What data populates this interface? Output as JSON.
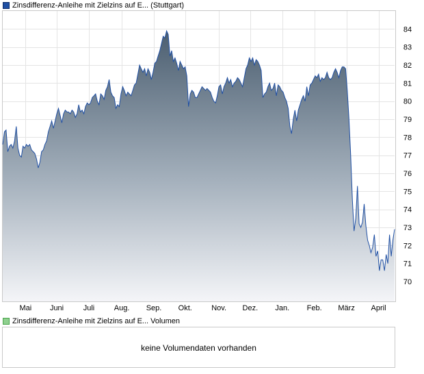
{
  "price_legend": {
    "label": "Zinsdifferenz-Anleihe mit Zielzins auf E... (Stuttgart)",
    "color": "#1f4fa3"
  },
  "volume_legend": {
    "label": "Zinsdifferenz-Anleihe mit Zielzins auf E... Volumen",
    "color": "#49a34b"
  },
  "volume": {
    "message": "keine Volumendaten vorhanden"
  },
  "chart_data": {
    "type": "area",
    "y_ticks": [
      70,
      71,
      72,
      73,
      74,
      75,
      76,
      77,
      78,
      79,
      80,
      81,
      82,
      83,
      84
    ],
    "ylim": [
      68.9,
      85.0
    ],
    "x_ticks": [
      {
        "label": "Mai",
        "pos": 13.5
      },
      {
        "label": "Juni",
        "pos": 32
      },
      {
        "label": "Juli",
        "pos": 51
      },
      {
        "label": "Aug.",
        "pos": 70.5
      },
      {
        "label": "Sep.",
        "pos": 89.5
      },
      {
        "label": "Okt.",
        "pos": 108
      },
      {
        "label": "Nov.",
        "pos": 128
      },
      {
        "label": "Dez.",
        "pos": 146.5
      },
      {
        "label": "Jan.",
        "pos": 165.5
      },
      {
        "label": "Feb.",
        "pos": 184.5
      },
      {
        "label": "März",
        "pos": 203.5
      },
      {
        "label": "April",
        "pos": 222.5
      }
    ],
    "xlim": [
      0,
      232
    ],
    "grid": true,
    "series": [
      {
        "values": [
          [
            0,
            77.6
          ],
          [
            1,
            78.3
          ],
          [
            2,
            78.4
          ],
          [
            3,
            77.2
          ],
          [
            4,
            77.5
          ],
          [
            5,
            77.6
          ],
          [
            6,
            77.4
          ],
          [
            7,
            77.8
          ],
          [
            8,
            78.6
          ],
          [
            9,
            77.4
          ],
          [
            10,
            77.0
          ],
          [
            11,
            76.9
          ],
          [
            12,
            77.5
          ],
          [
            13,
            77.4
          ],
          [
            14,
            77.6
          ],
          [
            15,
            77.5
          ],
          [
            16,
            77.6
          ],
          [
            17,
            77.3
          ],
          [
            18,
            77.2
          ],
          [
            19,
            77.1
          ],
          [
            20,
            76.8
          ],
          [
            21,
            76.3
          ],
          [
            22,
            76.6
          ],
          [
            23,
            77.2
          ],
          [
            24,
            77.3
          ],
          [
            25,
            77.6
          ],
          [
            26,
            77.8
          ],
          [
            27,
            78.3
          ],
          [
            28,
            78.6
          ],
          [
            29,
            78.9
          ],
          [
            30,
            78.5
          ],
          [
            31,
            78.9
          ],
          [
            32,
            79.3
          ],
          [
            33,
            79.6
          ],
          [
            34,
            79.2
          ],
          [
            35,
            78.8
          ],
          [
            36,
            79.3
          ],
          [
            37,
            79.5
          ],
          [
            38,
            79.4
          ],
          [
            39,
            79.4
          ],
          [
            40,
            79.3
          ],
          [
            41,
            79.5
          ],
          [
            42,
            79.4
          ],
          [
            43,
            79.1
          ],
          [
            44,
            79.3
          ],
          [
            45,
            79.8
          ],
          [
            46,
            79.4
          ],
          [
            47,
            79.5
          ],
          [
            48,
            79.3
          ],
          [
            49,
            79.7
          ],
          [
            50,
            79.9
          ],
          [
            51,
            79.8
          ],
          [
            52,
            79.9
          ],
          [
            53,
            80.2
          ],
          [
            54,
            80.3
          ],
          [
            55,
            80.4
          ],
          [
            56,
            80.0
          ],
          [
            57,
            79.8
          ],
          [
            58,
            80.4
          ],
          [
            59,
            80.3
          ],
          [
            60,
            80.1
          ],
          [
            61,
            80.6
          ],
          [
            62,
            80.8
          ],
          [
            63,
            81.2
          ],
          [
            64,
            80.5
          ],
          [
            65,
            80.3
          ],
          [
            66,
            80.2
          ],
          [
            67,
            79.6
          ],
          [
            68,
            79.8
          ],
          [
            69,
            79.7
          ],
          [
            70,
            80.4
          ],
          [
            71,
            80.8
          ],
          [
            72,
            80.6
          ],
          [
            73,
            80.3
          ],
          [
            74,
            80.5
          ],
          [
            75,
            80.4
          ],
          [
            76,
            80.3
          ],
          [
            77,
            80.6
          ],
          [
            78,
            80.9
          ],
          [
            79,
            81.0
          ],
          [
            80,
            81.5
          ],
          [
            81,
            82.0
          ],
          [
            82,
            81.8
          ],
          [
            83,
            81.6
          ],
          [
            84,
            81.8
          ],
          [
            85,
            81.4
          ],
          [
            86,
            81.8
          ],
          [
            87,
            81.6
          ],
          [
            88,
            81.2
          ],
          [
            89,
            81.6
          ],
          [
            90,
            82.1
          ],
          [
            91,
            82.2
          ],
          [
            92,
            82.5
          ],
          [
            93,
            82.8
          ],
          [
            94,
            83.2
          ],
          [
            95,
            83.6
          ],
          [
            96,
            83.5
          ],
          [
            97,
            83.9
          ],
          [
            98,
            83.7
          ],
          [
            99,
            82.5
          ],
          [
            100,
            82.8
          ],
          [
            101,
            82.2
          ],
          [
            102,
            82.4
          ],
          [
            103,
            82.1
          ],
          [
            104,
            81.7
          ],
          [
            105,
            82.2
          ],
          [
            106,
            82.0
          ],
          [
            107,
            81.8
          ],
          [
            108,
            81.9
          ],
          [
            109,
            81.4
          ],
          [
            110,
            79.7
          ],
          [
            111,
            80.4
          ],
          [
            112,
            80.6
          ],
          [
            113,
            80.5
          ],
          [
            114,
            80.2
          ],
          [
            115,
            80.2
          ],
          [
            116,
            80.4
          ],
          [
            117,
            80.6
          ],
          [
            118,
            80.8
          ],
          [
            119,
            80.7
          ],
          [
            120,
            80.6
          ],
          [
            121,
            80.7
          ],
          [
            122,
            80.6
          ],
          [
            123,
            80.5
          ],
          [
            124,
            80.2
          ],
          [
            125,
            80.0
          ],
          [
            126,
            79.9
          ],
          [
            127,
            80.3
          ],
          [
            128,
            80.8
          ],
          [
            129,
            80.9
          ],
          [
            130,
            80.4
          ],
          [
            131,
            80.8
          ],
          [
            132,
            81.0
          ],
          [
            133,
            81.3
          ],
          [
            134,
            81.0
          ],
          [
            135,
            81.2
          ],
          [
            136,
            80.8
          ],
          [
            137,
            81.0
          ],
          [
            138,
            81.1
          ],
          [
            139,
            81.3
          ],
          [
            140,
            81.2
          ],
          [
            141,
            81.0
          ],
          [
            142,
            80.8
          ],
          [
            143,
            81.3
          ],
          [
            144,
            81.8
          ],
          [
            145,
            82.0
          ],
          [
            146,
            82.4
          ],
          [
            147,
            82.2
          ],
          [
            148,
            82.4
          ],
          [
            149,
            82.0
          ],
          [
            150,
            82.3
          ],
          [
            151,
            82.2
          ],
          [
            152,
            82.0
          ],
          [
            153,
            81.7
          ],
          [
            154,
            80.2
          ],
          [
            155,
            80.4
          ],
          [
            156,
            80.5
          ],
          [
            157,
            80.8
          ],
          [
            158,
            81.0
          ],
          [
            159,
            80.6
          ],
          [
            160,
            80.7
          ],
          [
            161,
            81.0
          ],
          [
            162,
            80.3
          ],
          [
            163,
            80.9
          ],
          [
            164,
            80.8
          ],
          [
            165,
            80.6
          ],
          [
            166,
            80.5
          ],
          [
            167,
            80.2
          ],
          [
            168,
            80.0
          ],
          [
            169,
            79.6
          ],
          [
            170,
            78.6
          ],
          [
            171,
            78.2
          ],
          [
            172,
            79.0
          ],
          [
            173,
            79.5
          ],
          [
            174,
            78.9
          ],
          [
            175,
            79.5
          ],
          [
            176,
            79.8
          ],
          [
            177,
            80.1
          ],
          [
            178,
            80.3
          ],
          [
            179,
            80.0
          ],
          [
            180,
            80.8
          ],
          [
            181,
            80.3
          ],
          [
            182,
            80.9
          ],
          [
            183,
            81.0
          ],
          [
            184,
            81.2
          ],
          [
            185,
            81.4
          ],
          [
            186,
            81.3
          ],
          [
            187,
            81.5
          ],
          [
            188,
            81.1
          ],
          [
            189,
            81.3
          ],
          [
            190,
            81.2
          ],
          [
            191,
            81.3
          ],
          [
            192,
            81.6
          ],
          [
            193,
            81.3
          ],
          [
            194,
            81.2
          ],
          [
            195,
            81.3
          ],
          [
            196,
            81.6
          ],
          [
            197,
            81.8
          ],
          [
            198,
            81.6
          ],
          [
            199,
            81.3
          ],
          [
            200,
            81.7
          ],
          [
            201,
            81.9
          ],
          [
            202,
            81.9
          ],
          [
            203,
            81.8
          ],
          [
            204,
            80.6
          ],
          [
            205,
            79.0
          ],
          [
            206,
            77.0
          ],
          [
            207,
            74.5
          ],
          [
            208,
            72.8
          ],
          [
            209,
            73.5
          ],
          [
            210,
            75.3
          ],
          [
            211,
            73.2
          ],
          [
            212,
            73.0
          ],
          [
            213,
            73.3
          ],
          [
            214,
            74.3
          ],
          [
            215,
            73.1
          ],
          [
            216,
            72.3
          ],
          [
            217,
            72.0
          ],
          [
            218,
            71.6
          ],
          [
            219,
            71.9
          ],
          [
            220,
            72.6
          ],
          [
            221,
            71.4
          ],
          [
            222,
            71.7
          ],
          [
            223,
            70.6
          ],
          [
            224,
            71.2
          ],
          [
            225,
            71.2
          ],
          [
            226,
            70.6
          ],
          [
            227,
            71.5
          ],
          [
            228,
            71.0
          ],
          [
            229,
            72.6
          ],
          [
            230,
            71.4
          ],
          [
            231,
            72.3
          ],
          [
            232,
            72.9
          ]
        ]
      }
    ]
  }
}
